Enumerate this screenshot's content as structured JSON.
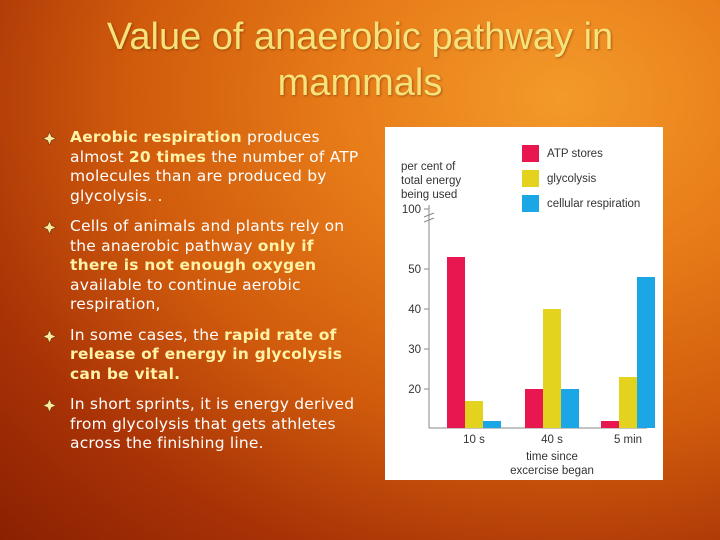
{
  "slide": {
    "title": "Value of anaerobic pathway in mammals",
    "bullets": [
      {
        "parts": [
          {
            "text": "Aerobic respiration",
            "highlight": true
          },
          {
            "text": " produces almost ",
            "highlight": false
          },
          {
            "text": "20 times",
            "highlight": true
          },
          {
            "text": " the number of ATP molecules than are produced by glycolysis. .",
            "highlight": false
          }
        ]
      },
      {
        "parts": [
          {
            "text": "Cells of animals and plants rely on the anaerobic pathway ",
            "highlight": false
          },
          {
            "text": "only if there is not enough oxygen",
            "highlight": true
          },
          {
            "text": " available to continue aerobic respiration,",
            "highlight": false
          }
        ]
      },
      {
        "parts": [
          {
            "text": "In some cases, the ",
            "highlight": false
          },
          {
            "text": "rapid rate of release of energy in glycolysis can be vital.",
            "highlight": true
          }
        ]
      },
      {
        "parts": [
          {
            "text": "In short sprints, it is energy derived from glycolysis that gets athletes across the finishing line.",
            "highlight": false
          }
        ]
      }
    ],
    "colors": {
      "title": "#f6e27a",
      "highlight": "#fff3a8",
      "body_text": "#ffffff"
    },
    "bullet_icon": "diamond-bullet-icon"
  },
  "chart_data": {
    "type": "bar",
    "ylabel": "per cent of total energy being used",
    "xlabel": "time since excercise began",
    "categories": [
      "10 s",
      "40 s",
      "5 min"
    ],
    "series": [
      {
        "name": "ATP stores",
        "color": "#e8174f",
        "values": [
          53,
          20,
          12
        ]
      },
      {
        "name": "glycolysis",
        "color": "#e3d21e",
        "values": [
          17,
          40,
          23
        ]
      },
      {
        "name": "cellular respiration",
        "color": "#1ba7e6",
        "values": [
          12,
          20,
          48
        ]
      }
    ],
    "yticks": [
      20,
      30,
      40,
      50,
      100
    ],
    "ylim": [
      11,
      58
    ],
    "y_axis_break": true,
    "legend_position": "top-right"
  }
}
